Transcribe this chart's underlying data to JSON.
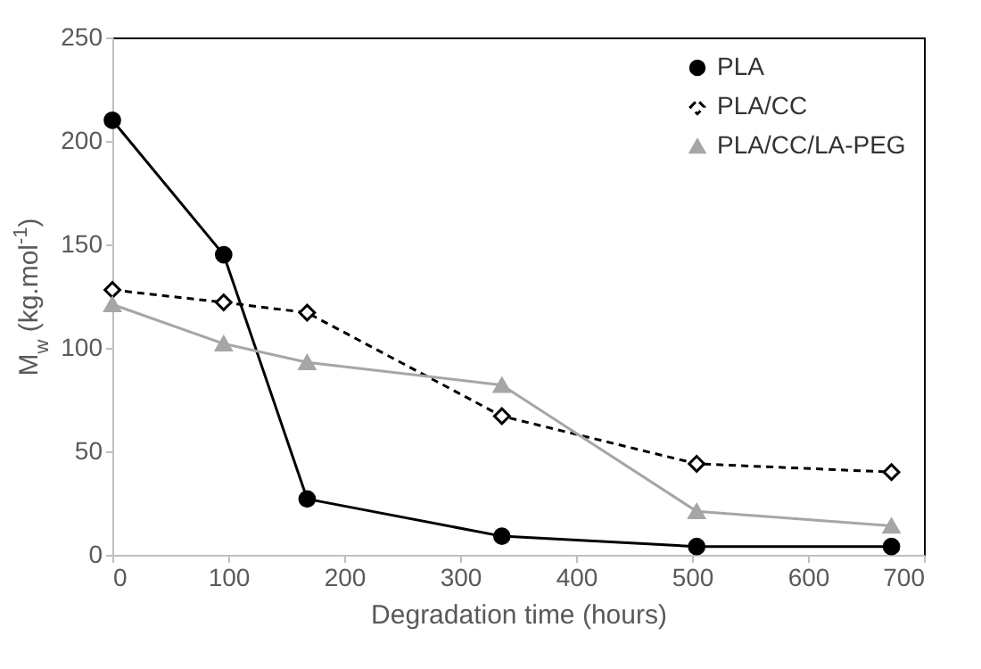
{
  "chart_data": {
    "type": "line",
    "xlabel": "Degradation time (hours)",
    "ylabel": "M$_{w}$ (kg.mol$^{-1}$)",
    "xlim": [
      0,
      700
    ],
    "xticks": [
      0,
      100,
      200,
      300,
      400,
      500,
      600,
      700
    ],
    "ylim": [
      0,
      250
    ],
    "yticks": [
      0,
      50,
      100,
      150,
      200,
      250
    ],
    "grid": false,
    "legend": "top right",
    "x": [
      0,
      96,
      168,
      336,
      504,
      672
    ],
    "series": [
      {
        "name": "PLA",
        "color": "#000000",
        "marker": "circle",
        "line_style": "solid",
        "values": [
          210,
          145,
          27,
          9,
          4,
          4
        ]
      },
      {
        "name": "PLA/CC",
        "color": "#000000",
        "marker": "diamond",
        "line_style": "dashed",
        "values": [
          128,
          122,
          117,
          67,
          44,
          40
        ]
      },
      {
        "name": "PLA/CC/LA-PEG",
        "color": "#a6a6a6",
        "marker": "triangle",
        "line_style": "solid",
        "values": [
          121,
          102,
          93,
          82,
          21,
          14
        ]
      }
    ]
  }
}
